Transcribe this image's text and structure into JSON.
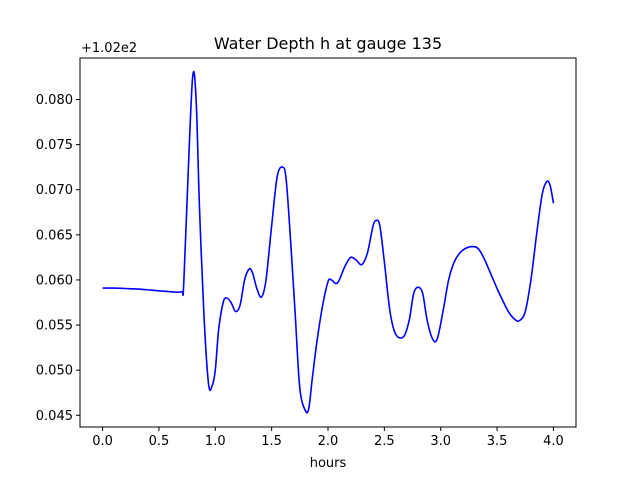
{
  "chart_data": {
    "type": "line",
    "title": "Water Depth h at gauge 135",
    "xlabel": "hours",
    "ylabel": "",
    "offset_label": "+1.02e2",
    "xlim": [
      -0.2,
      4.2
    ],
    "ylim": [
      0.0437,
      0.0846
    ],
    "x_ticks": [
      0.0,
      0.5,
      1.0,
      1.5,
      2.0,
      2.5,
      3.0,
      3.5,
      4.0
    ],
    "x_tick_labels": [
      "0.0",
      "0.5",
      "1.0",
      "1.5",
      "2.0",
      "2.5",
      "3.0",
      "3.5",
      "4.0"
    ],
    "y_ticks": [
      0.045,
      0.05,
      0.055,
      0.06,
      0.065,
      0.07,
      0.075,
      0.08
    ],
    "y_tick_labels": [
      "0.045",
      "0.050",
      "0.055",
      "0.060",
      "0.065",
      "0.070",
      "0.075",
      "0.080"
    ],
    "grid": false,
    "color": "#0000ff",
    "series": [
      {
        "x": [
          0.0,
          0.1,
          0.2,
          0.3,
          0.4,
          0.5,
          0.6,
          0.7,
          0.72,
          0.76,
          0.8,
          0.83,
          0.86,
          0.9,
          0.94,
          0.97,
          1.0,
          1.03,
          1.07,
          1.1,
          1.14,
          1.18,
          1.22,
          1.26,
          1.3,
          1.33,
          1.37,
          1.41,
          1.45,
          1.5,
          1.55,
          1.6,
          1.63,
          1.67,
          1.71,
          1.75,
          1.8,
          1.83,
          1.86,
          1.9,
          1.95,
          2.0,
          2.03,
          2.07,
          2.1,
          2.15,
          2.2,
          2.25,
          2.3,
          2.35,
          2.4,
          2.43,
          2.46,
          2.5,
          2.55,
          2.6,
          2.67,
          2.72,
          2.76,
          2.8,
          2.84,
          2.88,
          2.93,
          2.97,
          3.02,
          3.07,
          3.12,
          3.17,
          3.22,
          3.28,
          3.33,
          3.38,
          3.45,
          3.52,
          3.6,
          3.66,
          3.7,
          3.75,
          3.8,
          3.85,
          3.9,
          3.94,
          3.97,
          4.0
        ],
        "y": [
          0.0591,
          0.0591,
          0.05905,
          0.059,
          0.0589,
          0.0588,
          0.0587,
          0.0587,
          0.0595,
          0.072,
          0.0826,
          0.08,
          0.068,
          0.056,
          0.0485,
          0.0482,
          0.05,
          0.0545,
          0.0575,
          0.058,
          0.0575,
          0.0565,
          0.0572,
          0.06,
          0.0612,
          0.0608,
          0.059,
          0.0581,
          0.06,
          0.066,
          0.0715,
          0.0725,
          0.071,
          0.064,
          0.056,
          0.048,
          0.0455,
          0.0458,
          0.049,
          0.053,
          0.057,
          0.0598,
          0.06,
          0.0596,
          0.06,
          0.0615,
          0.0625,
          0.0622,
          0.0617,
          0.063,
          0.066,
          0.0666,
          0.066,
          0.062,
          0.0565,
          0.054,
          0.0537,
          0.0555,
          0.0585,
          0.0592,
          0.0585,
          0.0555,
          0.0534,
          0.0535,
          0.0565,
          0.06,
          0.062,
          0.063,
          0.0635,
          0.0637,
          0.0635,
          0.0625,
          0.0605,
          0.0585,
          0.0565,
          0.0556,
          0.0555,
          0.0565,
          0.06,
          0.065,
          0.0695,
          0.0709,
          0.0705,
          0.0685
        ]
      }
    ]
  }
}
